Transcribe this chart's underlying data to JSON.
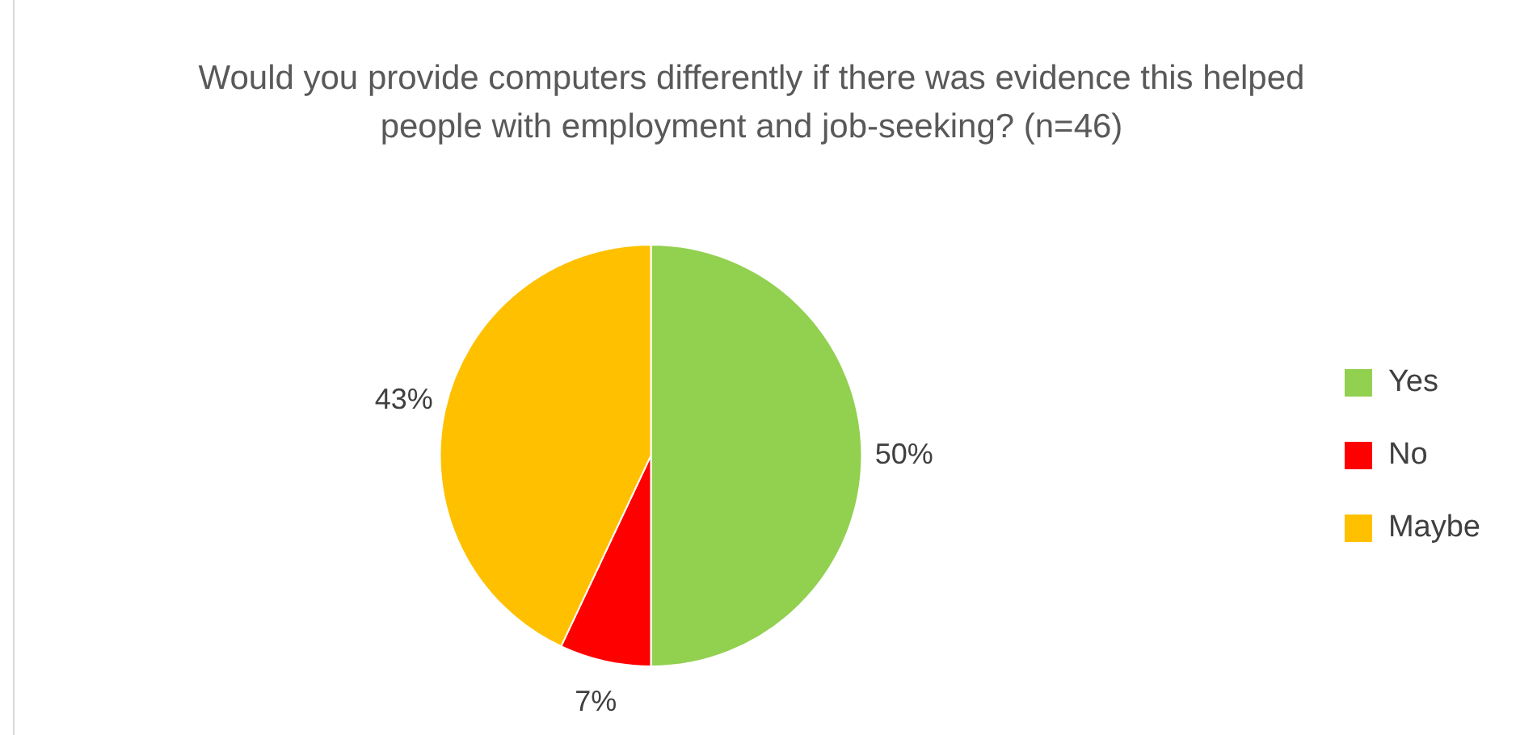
{
  "chart_data": {
    "type": "pie",
    "title": "Would you provide computers differently if there was evidence this helped people with employment and job-seeking? (n=46)",
    "categories": [
      "Yes",
      "No",
      "Maybe"
    ],
    "values": [
      50,
      7,
      43
    ],
    "value_labels": [
      "50%",
      "7%",
      "43%"
    ],
    "colors": [
      "#92d050",
      "#ff0000",
      "#ffc000"
    ],
    "legend": "right"
  }
}
